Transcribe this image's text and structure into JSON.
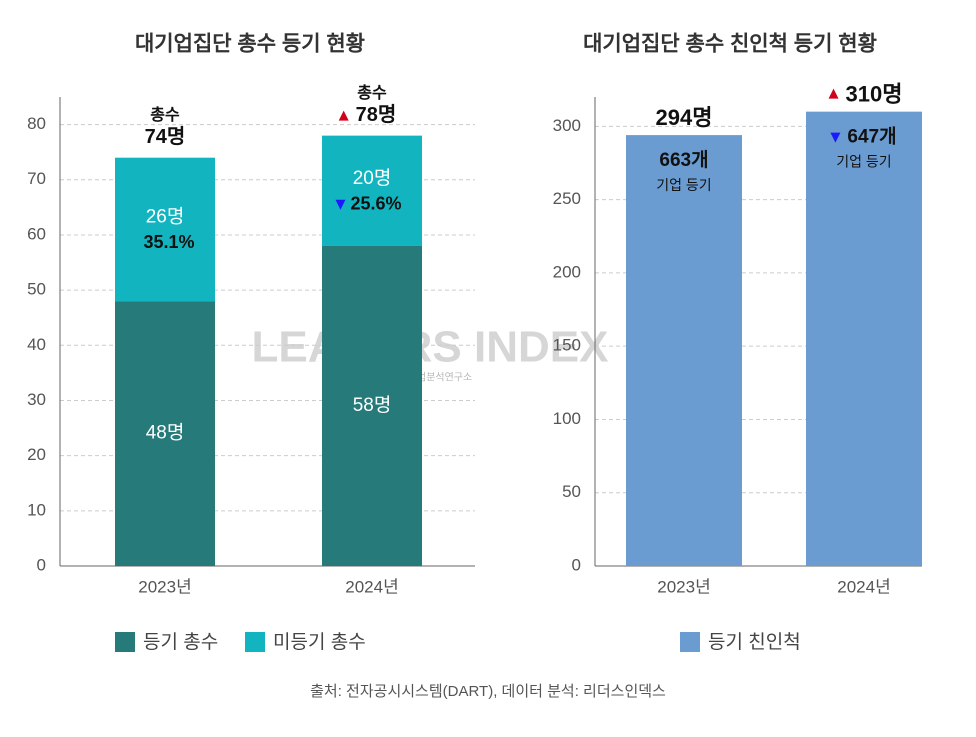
{
  "chart_data": [
    {
      "type": "stacked_bar",
      "title": "대기업집단 총수 등기 현황",
      "categories": [
        "2023년",
        "2024년"
      ],
      "series": [
        {
          "name": "등기 총수",
          "color": "#267a7a",
          "values": [
            48,
            58
          ],
          "value_labels": [
            "48명",
            "58명"
          ]
        },
        {
          "name": "미등기 총수",
          "color": "#12b5bf",
          "values": [
            26,
            20
          ],
          "value_labels": [
            "26명",
            "20명"
          ]
        }
      ],
      "total_title": "총수",
      "total_labels": [
        "74명",
        "78명"
      ],
      "share_labels": [
        "35.1%",
        "25.6%"
      ],
      "ylim": [
        0,
        85
      ],
      "yticks": [
        0,
        10,
        20,
        30,
        40,
        50,
        60,
        70,
        80
      ],
      "grid": true
    },
    {
      "type": "bar",
      "title": "대기업집단 총수 친인척 등기 현황",
      "categories": [
        "2023년",
        "2024년"
      ],
      "series": [
        {
          "name": "등기 친인척",
          "color": "#6a9bd1",
          "values": [
            294,
            310
          ],
          "value_labels": [
            "294명",
            "310명"
          ]
        }
      ],
      "filing_labels": [
        "663개",
        "647개"
      ],
      "filing_title": "기업 등기",
      "ylim": [
        0,
        320
      ],
      "yticks": [
        0,
        50,
        100,
        150,
        200,
        250,
        300
      ],
      "grid": true
    }
  ],
  "watermark": {
    "name": "LEADERS INDEX",
    "subtitle": "기업분석연구소"
  },
  "footer": "출처: 전자공시시스템(DART), 데이터 분석: 리더스인덱스"
}
